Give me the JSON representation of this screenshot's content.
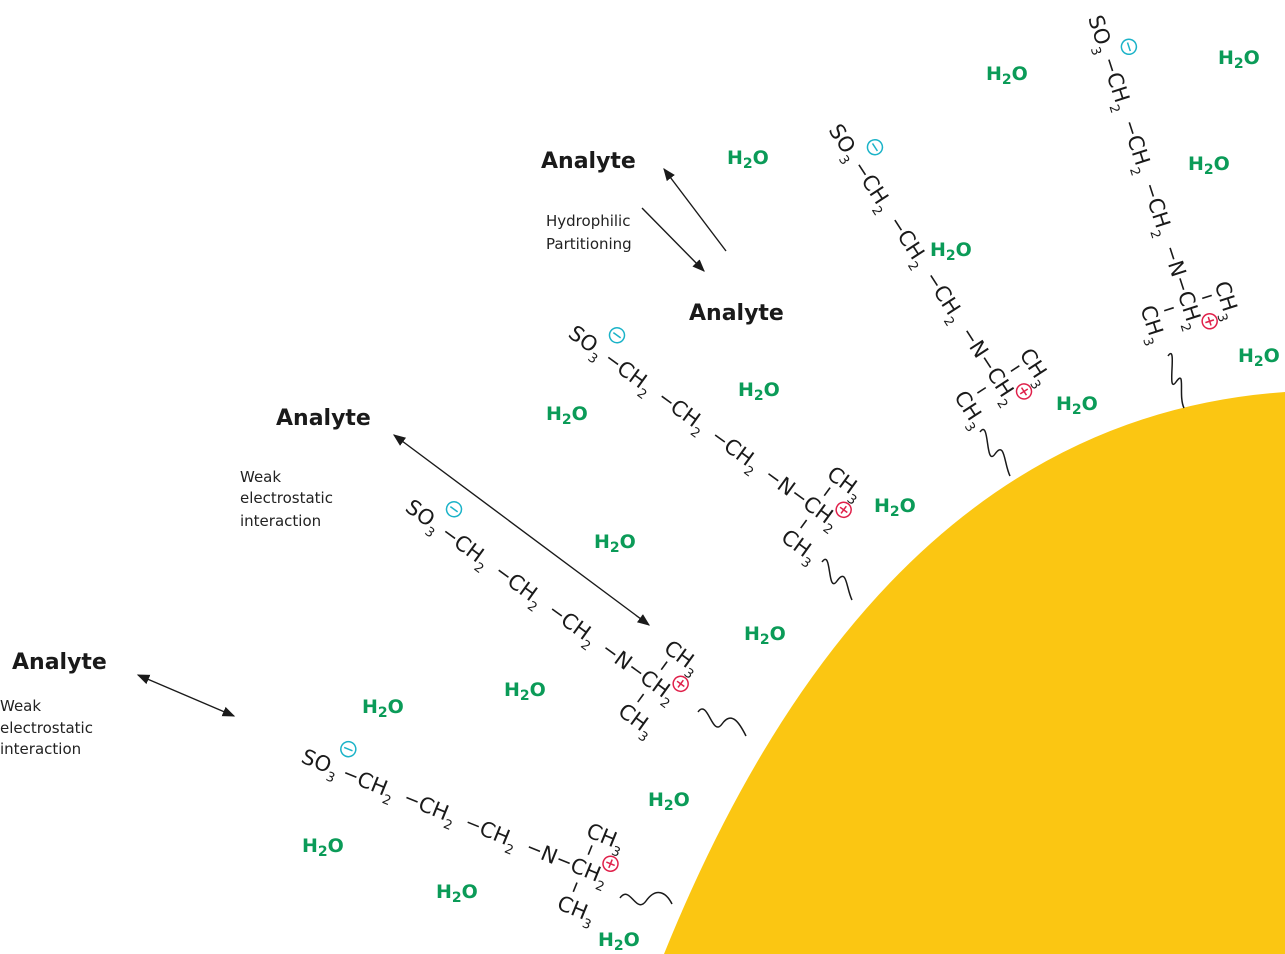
{
  "colors": {
    "bead": "#FBC612",
    "water": "#0B9B58",
    "anion": "#1BB3C8",
    "cation": "#E0204A",
    "text": "#1A1A1A"
  },
  "labels": {
    "analyte": "Analyte",
    "hydrophilic_line1": "Hydrophilic",
    "hydrophilic_line2": "Partitioning",
    "weak_line1": "Weak",
    "weak_line2": "electrostatic",
    "weak_line3": "interaction"
  },
  "water": {
    "main": "H",
    "sub": "2",
    "tail": "O"
  },
  "ligand": {
    "sulfonate": "SO",
    "sulfonate_sub": "3",
    "methylene": "CH",
    "methylene_sub": "2",
    "nitrogen": "N",
    "methyl": "CH",
    "methyl_sub": "3",
    "anion_symbol": "−",
    "cation_symbol": "+"
  },
  "icons": {
    "anion": "minus-circle-icon",
    "cation": "plus-circle-icon",
    "linker": "wavy-line-icon",
    "reversible": "equilibrium-arrows-icon",
    "interaction": "double-headed-arrow-icon"
  }
}
